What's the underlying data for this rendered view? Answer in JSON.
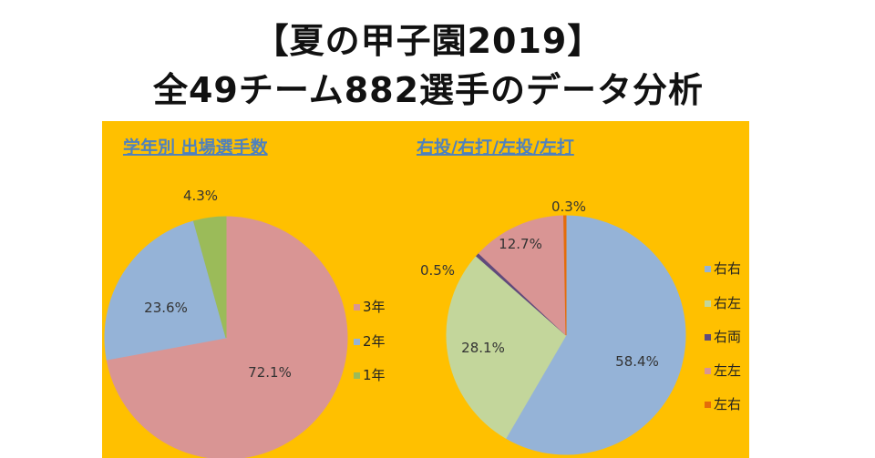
{
  "header": {
    "line1": "【夏の甲子園2019】",
    "line2": "全49チーム882選手のデータ分析"
  },
  "chart_data": [
    {
      "type": "pie",
      "title": "学年別 出場選手数",
      "legend_position": "right",
      "labels": [
        "3年",
        "2年",
        "1年"
      ],
      "values": [
        72.1,
        23.6,
        4.3
      ],
      "data_labels": [
        "72.1%",
        "23.6%",
        "4.3%"
      ],
      "colors": [
        "#d99594",
        "#95b3d7",
        "#9bbb59"
      ]
    },
    {
      "type": "pie",
      "title": "右投/右打/左投/左打",
      "legend_position": "right",
      "labels": [
        "右右",
        "右左",
        "右両",
        "左左",
        "左右"
      ],
      "values": [
        58.4,
        28.1,
        0.5,
        12.7,
        0.3
      ],
      "data_labels": [
        "58.4%",
        "28.1%",
        "0.5%",
        "12.7%",
        "0.3%"
      ],
      "colors": [
        "#95b3d7",
        "#c3d69b",
        "#604a7b",
        "#d99594",
        "#e46c0a"
      ]
    }
  ]
}
